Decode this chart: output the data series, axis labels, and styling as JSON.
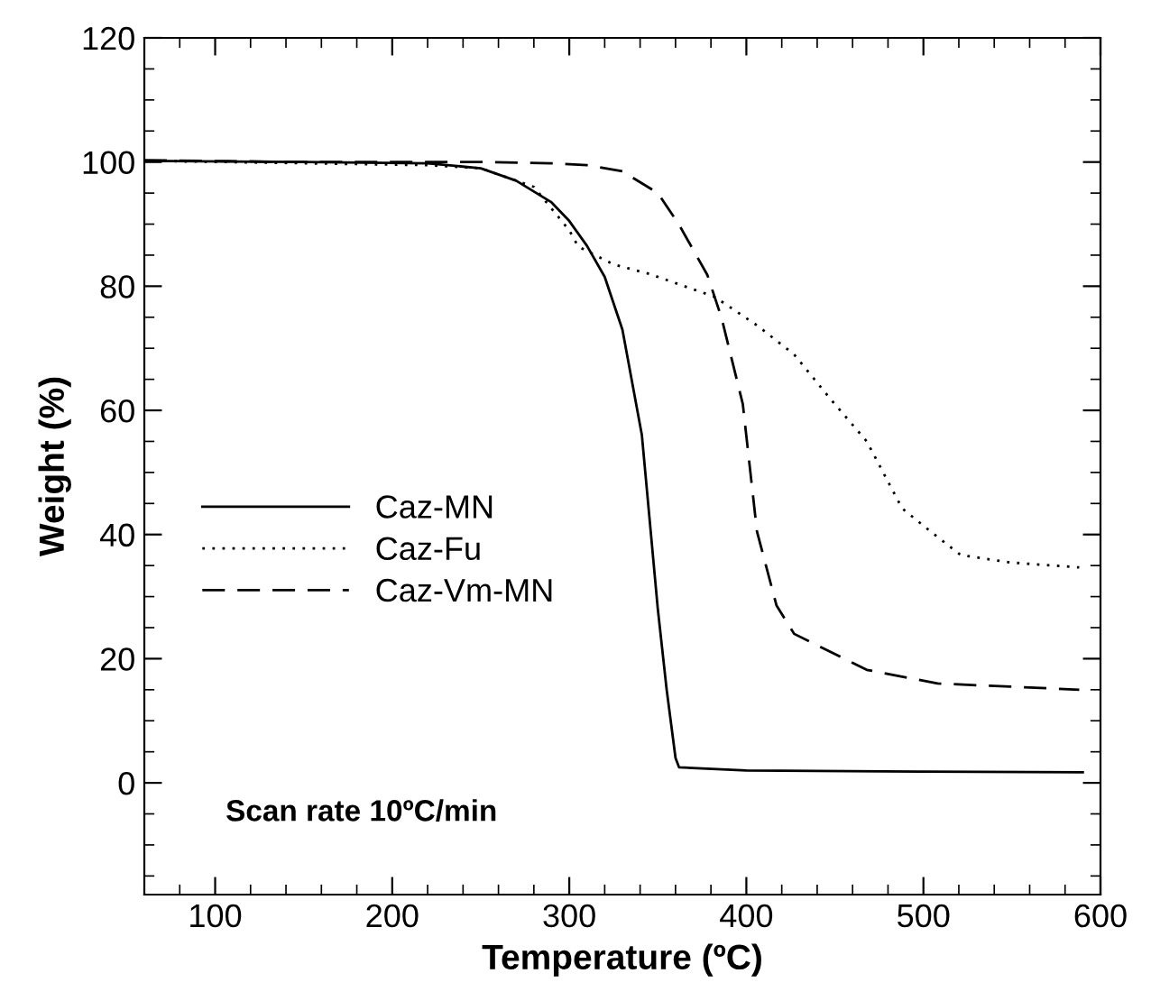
{
  "chart_data": {
    "type": "line",
    "xlabel": "Temperature (ºC)",
    "ylabel": "Weight (%)",
    "xlim": [
      60,
      600
    ],
    "ylim": [
      -18,
      120
    ],
    "xticks": [
      100,
      200,
      300,
      400,
      500,
      600
    ],
    "yticks": [
      0,
      20,
      40,
      60,
      80,
      100,
      120
    ],
    "grid": false,
    "legend": "lower left",
    "marker": "none",
    "annotations": [
      "Scan rate 10ºC/min"
    ],
    "series": [
      {
        "name": "Caz-MN",
        "color": "#000000",
        "line_style": "solid",
        "x": [
          60,
          150,
          220,
          250,
          270,
          290,
          300,
          310,
          320,
          330,
          341,
          350,
          355,
          360,
          362,
          400,
          500,
          590
        ],
        "values": [
          100.2,
          100,
          99.8,
          99,
          97,
          93.5,
          90.5,
          86.5,
          81.5,
          73,
          56,
          28,
          15,
          4,
          2.5,
          2,
          1.8,
          1.7
        ]
      },
      {
        "name": "Caz-Fu",
        "color": "#000000",
        "line_style": "dotted",
        "x": [
          60,
          150,
          220,
          250,
          280,
          300,
          305,
          325,
          345,
          382,
          406,
          427,
          447,
          468,
          488,
          504,
          521,
          549,
          588
        ],
        "values": [
          100.2,
          99.8,
          99.5,
          99,
          96,
          89,
          86.4,
          83.5,
          82,
          78.3,
          73.7,
          69,
          62,
          55,
          44.2,
          40.5,
          36.7,
          35.5,
          34.7
        ]
      },
      {
        "name": "Caz-Vm-MN",
        "color": "#000000",
        "line_style": "dashed",
        "x": [
          60,
          150,
          250,
          290,
          310,
          330,
          350,
          362,
          378,
          386,
          398,
          406,
          417,
          427,
          468,
          508,
          549,
          588
        ],
        "values": [
          100.3,
          100,
          100,
          99.8,
          99.5,
          98.5,
          95,
          89.9,
          81.8,
          74.9,
          61,
          40.5,
          28.6,
          24,
          18.2,
          16,
          15.5,
          15
        ]
      }
    ]
  }
}
